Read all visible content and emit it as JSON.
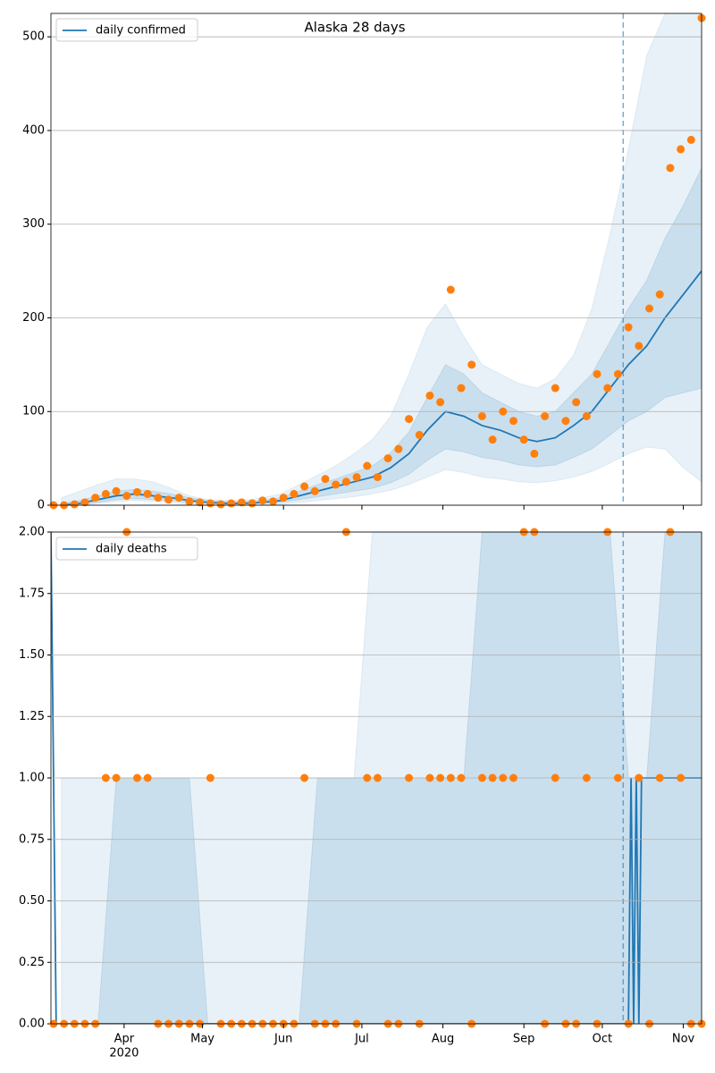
{
  "chart_data": [
    {
      "type": "line",
      "title": "Alaska 28 days",
      "legend": "upper left",
      "grid": true,
      "xlim": [
        3,
        252
      ],
      "ylim": [
        0,
        525
      ],
      "yticks": [
        0,
        100,
        200,
        300,
        400,
        500
      ],
      "vline": 222,
      "series": [
        {
          "name": "daily confirmed",
          "color": "#1f77b4",
          "x": [
            7,
            14,
            21,
            28,
            35,
            42,
            49,
            56,
            63,
            70,
            77,
            84,
            91,
            98,
            105,
            112,
            119,
            126,
            133,
            140,
            147,
            154,
            161,
            168,
            175,
            182,
            189,
            196,
            203,
            210,
            217,
            224,
            231,
            238,
            245,
            252
          ],
          "values": [
            0,
            2,
            6,
            10,
            12,
            10,
            8,
            5,
            3,
            2,
            2,
            3,
            5,
            10,
            15,
            20,
            25,
            30,
            40,
            55,
            80,
            100,
            95,
            85,
            80,
            72,
            68,
            72,
            85,
            100,
            125,
            150,
            170,
            200,
            225,
            250
          ]
        }
      ],
      "scatter": {
        "color": "#ff7f0e",
        "x": [
          4,
          8,
          12,
          16,
          20,
          24,
          28,
          32,
          36,
          40,
          44,
          48,
          52,
          56,
          60,
          64,
          68,
          72,
          76,
          80,
          84,
          88,
          92,
          96,
          100,
          104,
          108,
          112,
          116,
          120,
          124,
          128,
          132,
          136,
          140,
          144,
          148,
          152,
          156,
          160,
          164,
          168,
          172,
          176,
          180,
          184,
          188,
          192,
          196,
          200,
          204,
          208,
          212,
          216,
          220,
          224,
          228,
          232,
          236,
          240,
          244,
          248,
          252
        ],
        "values": [
          0,
          0,
          1,
          3,
          8,
          12,
          15,
          10,
          14,
          12,
          8,
          6,
          8,
          4,
          3,
          2,
          1,
          2,
          3,
          2,
          5,
          4,
          8,
          12,
          20,
          15,
          28,
          22,
          25,
          30,
          42,
          30,
          50,
          60,
          92,
          75,
          117,
          110,
          230,
          125,
          150,
          95,
          70,
          100,
          90,
          70,
          55,
          95,
          125,
          90,
          110,
          95,
          140,
          125,
          140,
          190,
          170,
          210,
          225,
          360,
          380,
          390,
          520
        ]
      },
      "bands": [
        {
          "color": "#1f77b4",
          "opacity": 0.1,
          "x": [
            7,
            14,
            21,
            28,
            35,
            42,
            49,
            56,
            63,
            70,
            77,
            84,
            91,
            98,
            105,
            112,
            119,
            126,
            133,
            140,
            147,
            154,
            161,
            168,
            175,
            182,
            189,
            196,
            203,
            210,
            217,
            224,
            231,
            238,
            245,
            252
          ],
          "lower": [
            0,
            0,
            2,
            4,
            5,
            4,
            3,
            1,
            0,
            0,
            0,
            0,
            1,
            3,
            5,
            7,
            9,
            12,
            16,
            22,
            30,
            38,
            35,
            30,
            28,
            25,
            24,
            26,
            30,
            36,
            45,
            55,
            62,
            60,
            40,
            25
          ],
          "upper": [
            8,
            15,
            22,
            28,
            28,
            25,
            18,
            10,
            6,
            5,
            5,
            8,
            12,
            22,
            32,
            42,
            55,
            70,
            95,
            140,
            190,
            215,
            180,
            150,
            140,
            130,
            125,
            135,
            160,
            210,
            290,
            380,
            480,
            525,
            525,
            525
          ]
        },
        {
          "color": "#1f77b4",
          "opacity": 0.15,
          "x": [
            7,
            14,
            21,
            28,
            35,
            42,
            49,
            56,
            63,
            70,
            77,
            84,
            91,
            98,
            105,
            112,
            119,
            126,
            133,
            140,
            147,
            154,
            161,
            168,
            175,
            182,
            189,
            196,
            203,
            210,
            217,
            224,
            231,
            238,
            245,
            252
          ],
          "lower": [
            0,
            1,
            3,
            6,
            7,
            6,
            5,
            3,
            2,
            1,
            1,
            2,
            3,
            6,
            9,
            12,
            15,
            18,
            24,
            33,
            48,
            60,
            57,
            51,
            48,
            43,
            41,
            43,
            51,
            60,
            75,
            90,
            100,
            115,
            120,
            125
          ],
          "upper": [
            2,
            5,
            10,
            15,
            17,
            15,
            12,
            8,
            5,
            4,
            4,
            5,
            8,
            15,
            22,
            28,
            35,
            42,
            56,
            78,
            115,
            150,
            140,
            120,
            110,
            100,
            95,
            100,
            120,
            140,
            175,
            210,
            240,
            285,
            320,
            360
          ]
        }
      ]
    },
    {
      "type": "line",
      "legend": "upper left",
      "grid": true,
      "xlim": [
        3,
        252
      ],
      "ylim": [
        0,
        2
      ],
      "vline": 222,
      "yticks": [
        {
          "value": 0,
          "label": "0.00"
        },
        {
          "value": 0.25,
          "label": "0.25"
        },
        {
          "value": 0.5,
          "label": "0.50"
        },
        {
          "value": 0.75,
          "label": "0.75"
        },
        {
          "value": 1,
          "label": "1.00"
        },
        {
          "value": 1.25,
          "label": "1.25"
        },
        {
          "value": 1.5,
          "label": "1.50"
        },
        {
          "value": 1.75,
          "label": "1.75"
        },
        {
          "value": 2,
          "label": "2.00"
        }
      ],
      "xticks": [
        {
          "value": 31,
          "label": "Apr"
        },
        {
          "value": 61,
          "label": "May"
        },
        {
          "value": 92,
          "label": "Jun"
        },
        {
          "value": 122,
          "label": "Jul"
        },
        {
          "value": 153,
          "label": "Aug"
        },
        {
          "value": 184,
          "label": "Sep"
        },
        {
          "value": 214,
          "label": "Oct"
        },
        {
          "value": 245,
          "label": "Nov"
        }
      ],
      "year_label": "2020",
      "series": [
        {
          "name": "daily deaths",
          "color": "#1f77b4",
          "x": [
            3,
            5,
            222,
            224,
            225,
            226,
            227,
            228,
            229,
            230,
            252
          ],
          "values": [
            2,
            0,
            0,
            0,
            1,
            0,
            1,
            0,
            1,
            1,
            1
          ]
        }
      ],
      "scatter": {
        "color": "#ff7f0e",
        "x": [
          4,
          8,
          12,
          16,
          20,
          24,
          28,
          32,
          36,
          40,
          44,
          48,
          52,
          56,
          60,
          64,
          68,
          72,
          76,
          80,
          84,
          88,
          92,
          96,
          100,
          104,
          108,
          112,
          116,
          120,
          124,
          128,
          132,
          136,
          140,
          144,
          148,
          152,
          156,
          160,
          164,
          168,
          172,
          176,
          180,
          184,
          188,
          192,
          196,
          200,
          204,
          208,
          212,
          216,
          220,
          224,
          228,
          232,
          236,
          240,
          244,
          248,
          252
        ],
        "values": [
          0,
          0,
          0,
          0,
          0,
          1,
          1,
          2,
          1,
          1,
          0,
          0,
          0,
          0,
          0,
          1,
          0,
          0,
          0,
          0,
          0,
          0,
          0,
          0,
          1,
          0,
          0,
          0,
          2,
          0,
          1,
          1,
          0,
          0,
          1,
          0,
          1,
          1,
          1,
          1,
          0,
          1,
          1,
          1,
          1,
          2,
          2,
          0,
          1,
          0,
          0,
          1,
          0,
          2,
          1,
          0,
          1,
          0,
          1,
          2,
          1,
          0,
          0
        ]
      },
      "bands": [
        {
          "color": "#1f77b4",
          "opacity": 0.1,
          "x": [
            7,
            14,
            21,
            28,
            35,
            42,
            49,
            56,
            63,
            70,
            77,
            84,
            91,
            98,
            105,
            112,
            119,
            126,
            133,
            140,
            147,
            154,
            161,
            168,
            175,
            182,
            189,
            196,
            203,
            210,
            217,
            224,
            231,
            238,
            245,
            252
          ],
          "lower": [
            0,
            0,
            0,
            0,
            0,
            0,
            0,
            0,
            0,
            0,
            0,
            0,
            0,
            0,
            0,
            0,
            0,
            0,
            0,
            0,
            0,
            0,
            0,
            0,
            0,
            0,
            0,
            0,
            0,
            0,
            0,
            0,
            0,
            0,
            0,
            0
          ],
          "upper": [
            1,
            1,
            1,
            1,
            1,
            1,
            1,
            1,
            1,
            1,
            1,
            1,
            1,
            1,
            1,
            1,
            1,
            2,
            2,
            2,
            2,
            2,
            2,
            2,
            2,
            2,
            2,
            2,
            2,
            2,
            2,
            2,
            2,
            2,
            2,
            2
          ]
        },
        {
          "color": "#1f77b4",
          "opacity": 0.15,
          "x": [
            7,
            14,
            21,
            28,
            35,
            42,
            49,
            56,
            63,
            70,
            77,
            84,
            91,
            98,
            105,
            112,
            119,
            126,
            133,
            140,
            147,
            154,
            161,
            168,
            175,
            182,
            189,
            196,
            203,
            210,
            217,
            224,
            231,
            238,
            245,
            252
          ],
          "lower": [
            0,
            0,
            0,
            0,
            0,
            0,
            0,
            0,
            0,
            0,
            0,
            0,
            0,
            0,
            0,
            0,
            0,
            0,
            0,
            0,
            0,
            0,
            0,
            0,
            0,
            0,
            0,
            0,
            0,
            0,
            0,
            0,
            0,
            0,
            0,
            0
          ],
          "upper": [
            0,
            0,
            0,
            1,
            1,
            1,
            1,
            1,
            0,
            0,
            0,
            0,
            0,
            0,
            1,
            1,
            1,
            1,
            1,
            1,
            1,
            1,
            1,
            2,
            2,
            2,
            2,
            2,
            2,
            2,
            2,
            1,
            1,
            2,
            2,
            2
          ]
        }
      ]
    }
  ]
}
